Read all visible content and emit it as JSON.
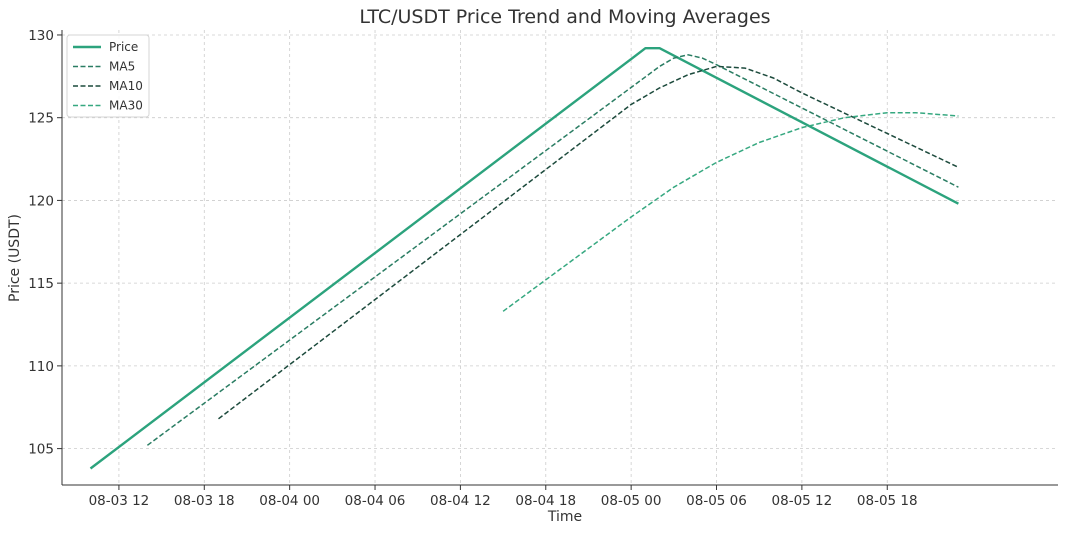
{
  "chart_data": {
    "type": "line",
    "title": "LTC/USDT Price Trend and Moving Averages",
    "xlabel": "Time",
    "ylabel": "Price (USDT)",
    "x_unit": "datetime",
    "xlim": [
      "2024-08-03 08:00",
      "2024-08-06 06:00"
    ],
    "ylim": [
      102.8,
      130.3
    ],
    "x_ticks": [
      {
        "label": "08-03 12",
        "value": "2024-08-03 12:00"
      },
      {
        "label": "08-03 18",
        "value": "2024-08-03 18:00"
      },
      {
        "label": "08-04 00",
        "value": "2024-08-04 00:00"
      },
      {
        "label": "08-04 06",
        "value": "2024-08-04 06:00"
      },
      {
        "label": "08-04 12",
        "value": "2024-08-04 12:00"
      },
      {
        "label": "08-04 18",
        "value": "2024-08-04 18:00"
      },
      {
        "label": "08-05 00",
        "value": "2024-08-05 00:00"
      },
      {
        "label": "08-05 06",
        "value": "2024-08-05 06:00"
      },
      {
        "label": "08-05 12",
        "value": "2024-08-05 12:00"
      },
      {
        "label": "08-05 18",
        "value": "2024-08-05 18:00"
      }
    ],
    "y_ticks": [
      105,
      110,
      115,
      120,
      125,
      130
    ],
    "grid": true,
    "legend_position": "top-left",
    "series": [
      {
        "name": "Price",
        "color": "#2ca37d",
        "style": "solid",
        "points": [
          {
            "x": "2024-08-03 10:00",
            "y": 103.8
          },
          {
            "x": "2024-08-05 01:00",
            "y": 129.2
          },
          {
            "x": "2024-08-05 02:00",
            "y": 129.2
          },
          {
            "x": "2024-08-05 23:00",
            "y": 119.8
          }
        ]
      },
      {
        "name": "MA5",
        "color": "#2a7d63",
        "style": "dashed",
        "points": [
          {
            "x": "2024-08-03 14:00",
            "y": 105.2
          },
          {
            "x": "2024-08-05 02:00",
            "y": 128.1
          },
          {
            "x": "2024-08-05 03:00",
            "y": 128.6
          },
          {
            "x": "2024-08-05 04:00",
            "y": 128.8
          },
          {
            "x": "2024-08-05 05:00",
            "y": 128.6
          },
          {
            "x": "2024-08-05 06:00",
            "y": 128.2
          },
          {
            "x": "2024-08-05 23:00",
            "y": 120.8
          }
        ]
      },
      {
        "name": "MA10",
        "color": "#1c4a3c",
        "style": "dashed",
        "points": [
          {
            "x": "2024-08-03 19:00",
            "y": 106.8
          },
          {
            "x": "2024-08-05 00:00",
            "y": 125.8
          },
          {
            "x": "2024-08-05 02:00",
            "y": 126.8
          },
          {
            "x": "2024-08-05 04:00",
            "y": 127.6
          },
          {
            "x": "2024-08-05 06:00",
            "y": 128.1
          },
          {
            "x": "2024-08-05 08:00",
            "y": 128.0
          },
          {
            "x": "2024-08-05 10:00",
            "y": 127.4
          },
          {
            "x": "2024-08-05 12:00",
            "y": 126.5
          },
          {
            "x": "2024-08-05 23:00",
            "y": 122.0
          }
        ]
      },
      {
        "name": "MA30",
        "color": "#36a880",
        "style": "dashed",
        "points": [
          {
            "x": "2024-08-04 15:00",
            "y": 113.3
          },
          {
            "x": "2024-08-04 18:00",
            "y": 115.2
          },
          {
            "x": "2024-08-04 21:00",
            "y": 117.1
          },
          {
            "x": "2024-08-05 00:00",
            "y": 119.0
          },
          {
            "x": "2024-08-05 03:00",
            "y": 120.8
          },
          {
            "x": "2024-08-05 06:00",
            "y": 122.3
          },
          {
            "x": "2024-08-05 09:00",
            "y": 123.5
          },
          {
            "x": "2024-08-05 12:00",
            "y": 124.4
          },
          {
            "x": "2024-08-05 15:00",
            "y": 125.0
          },
          {
            "x": "2024-08-05 18:00",
            "y": 125.3
          },
          {
            "x": "2024-08-05 20:00",
            "y": 125.3
          },
          {
            "x": "2024-08-05 23:00",
            "y": 125.1
          }
        ]
      }
    ]
  }
}
